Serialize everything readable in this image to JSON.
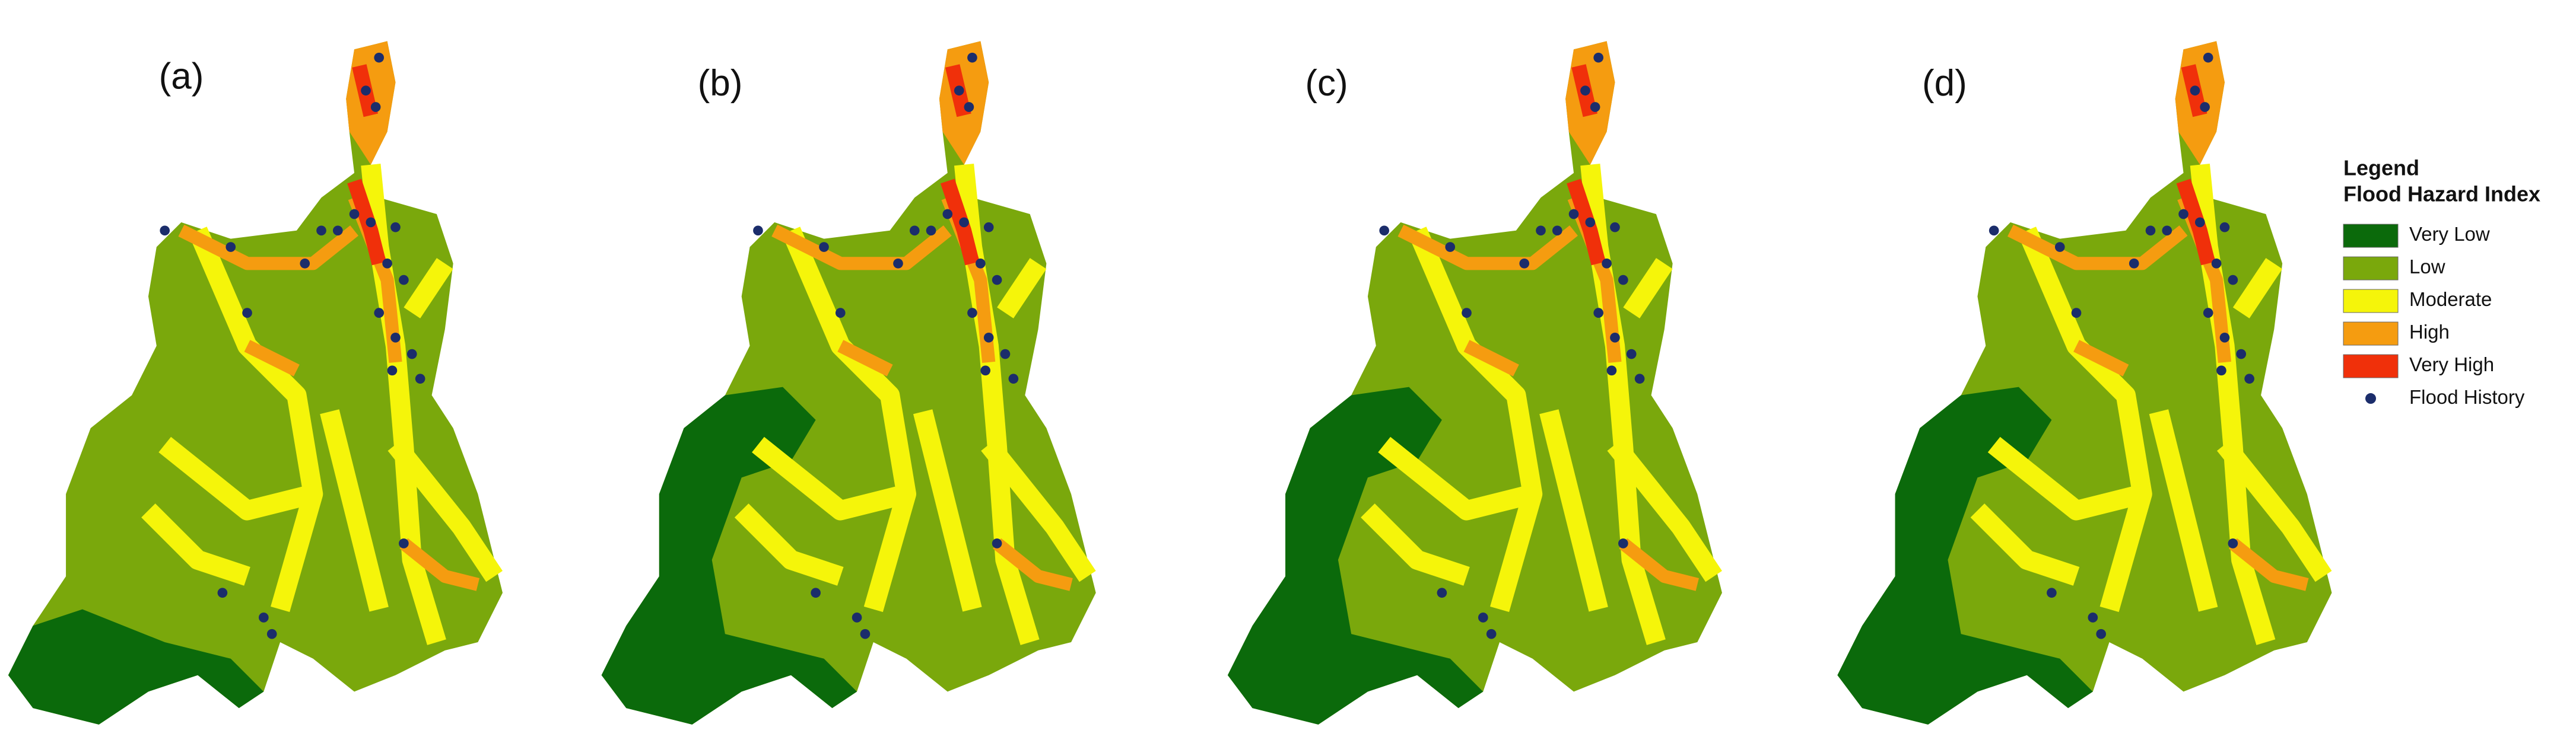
{
  "panels": [
    {
      "label": "(a)"
    },
    {
      "label": "(b)"
    },
    {
      "label": "(c)"
    },
    {
      "label": "(d)"
    }
  ],
  "legend": {
    "title": "Legend",
    "subtitle": "Flood Hazard Index",
    "items": [
      {
        "label": "Very Low",
        "color": "#0b6a0b",
        "shape": "square"
      },
      {
        "label": "Low",
        "color": "#7aa80c",
        "shape": "square"
      },
      {
        "label": "Moderate",
        "color": "#f5f50a",
        "shape": "square"
      },
      {
        "label": "High",
        "color": "#f59c10",
        "shape": "square"
      },
      {
        "label": "Very High",
        "color": "#f0300a",
        "shape": "square"
      },
      {
        "label": "Flood History",
        "color": "#1b2d6b",
        "shape": "circle"
      }
    ]
  }
}
